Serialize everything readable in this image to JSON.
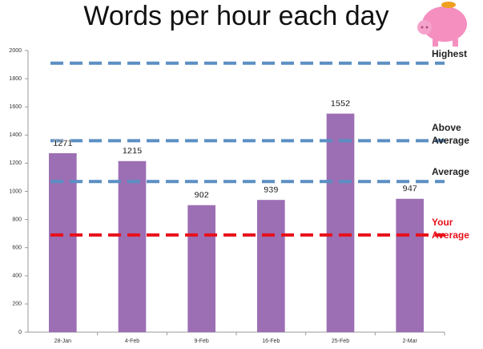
{
  "chart_data": {
    "type": "bar",
    "title": "Words per hour each day",
    "categories": [
      "28-Jan",
      "4-Feb",
      "9-Feb",
      "16-Feb",
      "25-Feb",
      "2-Mar"
    ],
    "values": [
      1271,
      1215,
      902,
      939,
      1552,
      947
    ],
    "color": "#9c6fb4",
    "ylim": [
      0,
      2000
    ],
    "yticks": [
      0,
      200,
      400,
      600,
      800,
      1000,
      1200,
      1400,
      1600,
      1800,
      2000
    ],
    "reference_lines": [
      {
        "label": "Highest",
        "value": 1910,
        "color": "#5b8fc4"
      },
      {
        "label": "Above Average",
        "value": 1360,
        "color": "#5b8fc4"
      },
      {
        "label": "Average",
        "value": 1070,
        "color": "#5b8fc4"
      },
      {
        "label": "Your Average",
        "value": 690,
        "color": "#e8101a"
      }
    ]
  }
}
